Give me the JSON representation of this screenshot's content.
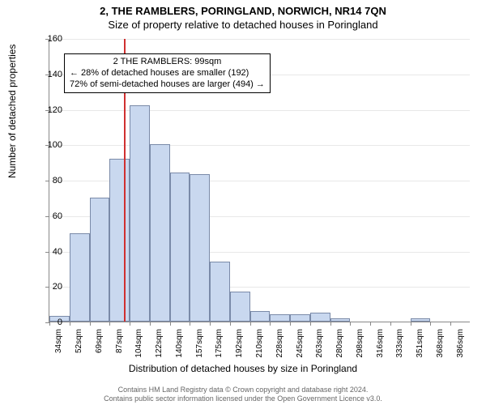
{
  "title_main": "2, THE RAMBLERS, PORINGLAND, NORWICH, NR14 7QN",
  "title_sub": "Size of property relative to detached houses in Poringland",
  "ylabel": "Number of detached properties",
  "xlabel": "Distribution of detached houses by size in Poringland",
  "chart": {
    "type": "histogram",
    "ylim": [
      0,
      160
    ],
    "ytick_step": 20,
    "bar_color": "#c9d8ef",
    "bar_border": "#7a8aa8",
    "grid_color": "#e8e8e8",
    "axis_color": "#888888",
    "background": "#ffffff",
    "refline_color": "#d03030",
    "refline_x": 99,
    "x_start": 34,
    "x_step": 17.55,
    "categories": [
      "34sqm",
      "52sqm",
      "69sqm",
      "87sqm",
      "104sqm",
      "122sqm",
      "140sqm",
      "157sqm",
      "175sqm",
      "192sqm",
      "210sqm",
      "228sqm",
      "245sqm",
      "263sqm",
      "280sqm",
      "298sqm",
      "316sqm",
      "333sqm",
      "351sqm",
      "368sqm",
      "386sqm"
    ],
    "values": [
      3,
      50,
      70,
      92,
      122,
      100,
      84,
      83,
      34,
      17,
      6,
      4,
      4,
      5,
      2,
      0,
      0,
      0,
      2,
      0,
      0
    ]
  },
  "annotation": {
    "line1": "2 THE RAMBLERS: 99sqm",
    "line2": "← 28% of detached houses are smaller (192)",
    "line3": "72% of semi-detached houses are larger (494) →"
  },
  "footer_line1": "Contains HM Land Registry data © Crown copyright and database right 2024.",
  "footer_line2": "Contains public sector information licensed under the Open Government Licence v3.0."
}
